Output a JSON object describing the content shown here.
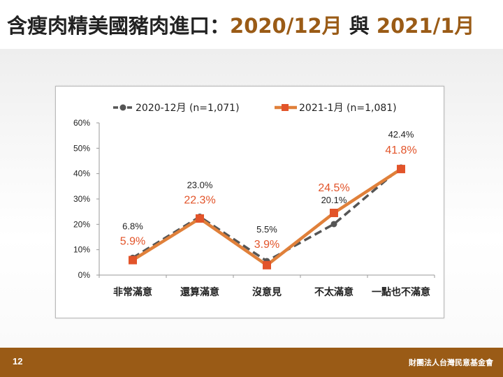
{
  "slide": {
    "title_part1": "含瘦肉精美國豬肉進口：",
    "title_part2": "2020/12月",
    "title_part3": " 與 ",
    "title_part4": "2021/1月",
    "page_number": "12",
    "organization": "財團法人台灣民意基金會"
  },
  "colors": {
    "accent": "#9a5b16",
    "series_2020": "#555555",
    "series_2021": "#e0803a",
    "label_2021": "#e2542a"
  },
  "chart_data": {
    "type": "line",
    "categories": [
      "非常滿意",
      "還算滿意",
      "沒意見",
      "不太滿意",
      "一點也不滿意"
    ],
    "ylim": [
      0,
      60
    ],
    "yticks": [
      0,
      10,
      20,
      30,
      40,
      50,
      60
    ],
    "ytick_labels": [
      "0%",
      "10%",
      "20%",
      "30%",
      "40%",
      "50%",
      "60%"
    ],
    "legend_position": "top",
    "series": [
      {
        "name": "2020-12月 (n=1,071)",
        "values": [
          6.8,
          23.0,
          5.5,
          20.1,
          42.4
        ],
        "labels": [
          "6.8%",
          "23.0%",
          "5.5%",
          "20.1%",
          "42.4%"
        ],
        "style": "dashed",
        "marker": "circle"
      },
      {
        "name": "2021-1月 (n=1,081)",
        "values": [
          5.9,
          22.3,
          3.9,
          24.5,
          41.8
        ],
        "labels": [
          "5.9%",
          "22.3%",
          "3.9%",
          "24.5%",
          "41.8%"
        ],
        "style": "solid",
        "marker": "square"
      }
    ]
  }
}
